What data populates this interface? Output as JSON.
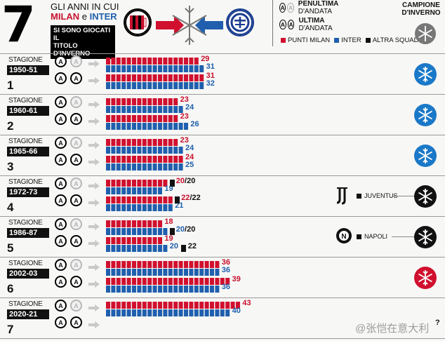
{
  "header": {
    "big_number": "7",
    "line1": "GLI ANNI IN CUI",
    "team1": "MILAN",
    "conj": "e",
    "team2": "INTER",
    "box_line1": "SI SONO GIOCATI IL",
    "box_line2": "TITOLO D'INVERNO"
  },
  "legend": {
    "penultima": "PENULTIMA",
    "penultima_suffix": "D'ANDATA",
    "ultima": "ULTIMA",
    "ultima_suffix": "D'ANDATA",
    "badge_letter": "A",
    "punti_milan": "PUNTI MILAN",
    "inter": "INTER",
    "altra_squadra": "ALTRA SQUADRA",
    "champion_line1": "CAMPIONE",
    "champion_line2": "D'INVERNO"
  },
  "colors": {
    "milan": "#d0102e",
    "inter": "#1f5fad",
    "other": "#111111",
    "inter_icon": "#1a78c8"
  },
  "rows": [
    {
      "label": "STAGIONE",
      "season": "1950-51",
      "index": "1",
      "pen": {
        "milan": 29,
        "inter": 31,
        "other": null,
        "text": [
          "29",
          "31"
        ]
      },
      "ult": {
        "milan": 31,
        "inter": 32,
        "other": null,
        "text": [
          "31",
          "32"
        ]
      },
      "winner": "inter",
      "winner_label": ""
    },
    {
      "label": "STAGIONE",
      "season": "1960-61",
      "index": "2",
      "pen": {
        "milan": 23,
        "inter": 24,
        "other": null,
        "text": [
          "23",
          "24"
        ]
      },
      "ult": {
        "milan": 23,
        "inter": 26,
        "other": null,
        "text": [
          "23",
          "26"
        ]
      },
      "winner": "inter",
      "winner_label": ""
    },
    {
      "label": "STAGIONE",
      "season": "1965-66",
      "index": "3",
      "pen": {
        "milan": 23,
        "inter": 24,
        "other": null,
        "text": [
          "23",
          "24"
        ]
      },
      "ult": {
        "milan": 24,
        "inter": 25,
        "other": null,
        "text": [
          "24",
          "25"
        ]
      },
      "winner": "inter",
      "winner_label": ""
    },
    {
      "label": "STAGIONE",
      "season": "1972-73",
      "index": "4",
      "pen": {
        "milan": 20,
        "inter": 19,
        "other": 20,
        "text": [
          "20/20",
          "19"
        ]
      },
      "ult": {
        "milan": 22,
        "inter": 21,
        "other": 22,
        "text": [
          "22/22",
          "21"
        ]
      },
      "winner": "other",
      "winner_label": "JUVENTUS"
    },
    {
      "label": "STAGIONE",
      "season": "1986-87",
      "index": "5",
      "pen": {
        "milan": 18,
        "inter": 20,
        "other": 20,
        "text": [
          "18",
          "20/20"
        ]
      },
      "ult": {
        "milan": 19,
        "inter": 20,
        "other": 22,
        "text": [
          "19",
          "20",
          "22"
        ]
      },
      "winner": "other",
      "winner_label": "NAPOLI"
    },
    {
      "label": "STAGIONE",
      "season": "2002-03",
      "index": "6",
      "pen": {
        "milan": 36,
        "inter": 36,
        "other": null,
        "text": [
          "36",
          "36"
        ]
      },
      "ult": {
        "milan": 39,
        "inter": 36,
        "other": null,
        "text": [
          "39",
          "36"
        ]
      },
      "winner": "milan",
      "winner_label": ""
    },
    {
      "label": "STAGIONE",
      "season": "2020-21",
      "index": "7",
      "pen": {
        "milan": 43,
        "inter": 40,
        "other": null,
        "text": [
          "43",
          "40"
        ]
      },
      "ult": {
        "milan": null,
        "inter": null,
        "other": null,
        "text": [
          "?"
        ]
      },
      "winner": null,
      "winner_label": ""
    }
  ],
  "watermark": "@张恺在意大利"
}
